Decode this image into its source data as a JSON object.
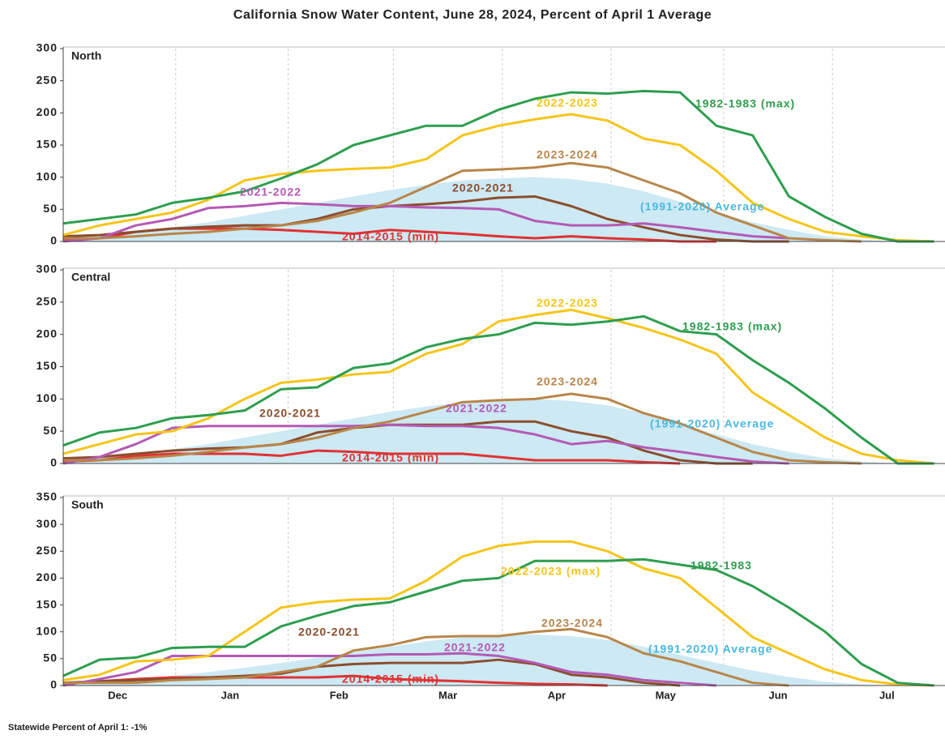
{
  "title": "California Snow Water Content, June 28, 2024, Percent of April 1 Average",
  "footnote": "Statewide Percent of April 1: -1%",
  "chart_data": [
    {
      "type": "line",
      "title": "North",
      "x": [
        0,
        10,
        20,
        30,
        40,
        50,
        60,
        70,
        80,
        90,
        100,
        110,
        120,
        130,
        140,
        150,
        160,
        170,
        180,
        190,
        200,
        210,
        220,
        230,
        240
      ],
      "xlim": [
        0,
        243
      ],
      "xgrid": [
        31,
        62,
        91,
        121,
        151,
        182,
        212
      ],
      "ylim": [
        0,
        300
      ],
      "yticks": [
        0,
        50,
        100,
        150,
        200,
        250,
        300
      ],
      "series": [
        {
          "name": "(1991-2020) Average",
          "type": "area",
          "color": "#cde9f4",
          "label_color": "#4ab8e0",
          "values": [
            5,
            10,
            15,
            22,
            30,
            40,
            50,
            60,
            70,
            80,
            88,
            95,
            98,
            100,
            97,
            90,
            78,
            62,
            45,
            30,
            18,
            8,
            3,
            0,
            0
          ]
        },
        {
          "name": "2014-2015 (min)",
          "color": "#e03232",
          "values": [
            2,
            5,
            15,
            20,
            20,
            20,
            18,
            15,
            12,
            18,
            15,
            12,
            8,
            5,
            8,
            5,
            3,
            0,
            0,
            null,
            null,
            null,
            null,
            null,
            null
          ]
        },
        {
          "name": "2020-2021",
          "color": "#8b4e2e",
          "values": [
            8,
            10,
            15,
            20,
            23,
            25,
            25,
            35,
            50,
            55,
            58,
            62,
            68,
            70,
            55,
            35,
            22,
            10,
            3,
            0,
            0,
            null,
            null,
            null,
            null
          ]
        },
        {
          "name": "2021-2022",
          "color": "#b45ab4",
          "values": [
            0,
            5,
            25,
            35,
            52,
            55,
            60,
            58,
            55,
            55,
            53,
            52,
            50,
            32,
            25,
            25,
            28,
            22,
            15,
            8,
            5,
            null,
            null,
            null,
            null
          ]
        },
        {
          "name": "2023-2024",
          "color": "#b8864a",
          "values": [
            5,
            5,
            8,
            12,
            15,
            20,
            25,
            32,
            45,
            60,
            85,
            110,
            112,
            115,
            122,
            115,
            95,
            75,
            45,
            25,
            5,
            2,
            0,
            null,
            null
          ]
        },
        {
          "name": "2022-2023",
          "color": "#f5c518",
          "values": [
            10,
            25,
            35,
            45,
            65,
            95,
            105,
            110,
            113,
            115,
            128,
            165,
            180,
            190,
            198,
            188,
            160,
            150,
            110,
            60,
            35,
            15,
            8,
            2,
            0
          ]
        },
        {
          "name": "1982-1983 (max)",
          "color": "#2e9e4f",
          "values": [
            28,
            35,
            42,
            60,
            68,
            78,
            98,
            120,
            150,
            165,
            180,
            180,
            205,
            222,
            232,
            230,
            234,
            232,
            180,
            165,
            70,
            38,
            12,
            0,
            0
          ]
        }
      ]
    },
    {
      "type": "line",
      "title": "Central",
      "x": [
        0,
        10,
        20,
        30,
        40,
        50,
        60,
        70,
        80,
        90,
        100,
        110,
        120,
        130,
        140,
        150,
        160,
        170,
        180,
        190,
        200,
        210,
        220,
        230,
        240
      ],
      "xlim": [
        0,
        243
      ],
      "xgrid": [
        31,
        62,
        91,
        121,
        151,
        182,
        212
      ],
      "ylim": [
        0,
        300
      ],
      "yticks": [
        0,
        50,
        100,
        150,
        200,
        250,
        300
      ],
      "series": [
        {
          "name": "(1991-2020) Average",
          "type": "area",
          "color": "#cde9f4",
          "label_color": "#4ab8e0",
          "values": [
            5,
            10,
            15,
            22,
            30,
            40,
            50,
            60,
            70,
            80,
            88,
            95,
            98,
            100,
            97,
            90,
            78,
            62,
            45,
            30,
            18,
            8,
            3,
            0,
            0
          ]
        },
        {
          "name": "2014-2015 (min)",
          "color": "#e03232",
          "values": [
            3,
            5,
            12,
            15,
            15,
            15,
            12,
            20,
            18,
            15,
            15,
            15,
            10,
            5,
            5,
            5,
            2,
            0,
            null,
            null,
            null,
            null,
            null,
            null,
            null
          ]
        },
        {
          "name": "2020-2021",
          "color": "#8b4e2e",
          "values": [
            8,
            10,
            15,
            20,
            23,
            25,
            30,
            48,
            55,
            60,
            60,
            60,
            65,
            65,
            50,
            40,
            20,
            5,
            0,
            0,
            null,
            null,
            null,
            null,
            null
          ]
        },
        {
          "name": "2021-2022",
          "color": "#b45ab4",
          "values": [
            0,
            10,
            30,
            55,
            58,
            58,
            58,
            58,
            58,
            60,
            58,
            58,
            55,
            45,
            30,
            35,
            25,
            18,
            10,
            3,
            0,
            null,
            null,
            null,
            null
          ]
        },
        {
          "name": "2023-2024",
          "color": "#b8864a",
          "values": [
            5,
            5,
            8,
            12,
            18,
            25,
            30,
            40,
            55,
            65,
            80,
            95,
            98,
            100,
            108,
            100,
            78,
            62,
            40,
            18,
            5,
            2,
            0,
            null,
            null
          ]
        },
        {
          "name": "2022-2023",
          "color": "#f5c518",
          "values": [
            15,
            30,
            45,
            50,
            70,
            100,
            125,
            130,
            138,
            142,
            170,
            185,
            220,
            230,
            238,
            225,
            210,
            192,
            170,
            110,
            75,
            40,
            15,
            5,
            0
          ]
        },
        {
          "name": "1982-1983 (max)",
          "color": "#2e9e4f",
          "values": [
            28,
            48,
            55,
            70,
            75,
            82,
            115,
            118,
            148,
            155,
            180,
            193,
            200,
            218,
            215,
            220,
            228,
            205,
            200,
            160,
            125,
            85,
            40,
            0,
            0
          ]
        }
      ]
    },
    {
      "type": "line",
      "title": "South",
      "x": [
        0,
        10,
        20,
        30,
        40,
        50,
        60,
        70,
        80,
        90,
        100,
        110,
        120,
        130,
        140,
        150,
        160,
        170,
        180,
        190,
        200,
        210,
        220,
        230,
        240
      ],
      "xlim": [
        0,
        243
      ],
      "xgrid": [
        31,
        62,
        91,
        121,
        151,
        182,
        212
      ],
      "ylim": [
        0,
        350
      ],
      "yticks": [
        0,
        50,
        100,
        150,
        200,
        250,
        300,
        350
      ],
      "xticks": [
        {
          "value": 15,
          "label": "Dec"
        },
        {
          "value": 46,
          "label": "Jan"
        },
        {
          "value": 76,
          "label": "Feb"
        },
        {
          "value": 106,
          "label": "Mar"
        },
        {
          "value": 136,
          "label": "Apr"
        },
        {
          "value": 166,
          "label": "May"
        },
        {
          "value": 197,
          "label": "Jun"
        },
        {
          "value": 227,
          "label": "Jul"
        }
      ],
      "series": [
        {
          "name": "(1991-2020) Average",
          "type": "area",
          "color": "#cde9f4",
          "label_color": "#4ab8e0",
          "values": [
            5,
            8,
            12,
            18,
            25,
            33,
            42,
            52,
            62,
            72,
            82,
            90,
            94,
            95,
            92,
            85,
            72,
            57,
            42,
            28,
            16,
            7,
            2,
            0,
            0
          ]
        },
        {
          "name": "2014-2015 (min)",
          "color": "#e03232",
          "values": [
            3,
            8,
            12,
            15,
            15,
            15,
            15,
            15,
            18,
            12,
            10,
            8,
            5,
            3,
            2,
            0,
            null,
            null,
            null,
            null,
            null,
            null,
            null,
            null,
            null
          ]
        },
        {
          "name": "2020-2021",
          "color": "#8b4e2e",
          "values": [
            5,
            8,
            10,
            12,
            15,
            18,
            22,
            35,
            40,
            42,
            42,
            42,
            48,
            40,
            20,
            15,
            5,
            0,
            null,
            null,
            null,
            null,
            null,
            null,
            null
          ]
        },
        {
          "name": "2021-2022",
          "color": "#b45ab4",
          "values": [
            0,
            12,
            25,
            55,
            55,
            55,
            55,
            55,
            55,
            58,
            58,
            60,
            55,
            42,
            25,
            20,
            10,
            5,
            0,
            null,
            null,
            null,
            null,
            null,
            null
          ]
        },
        {
          "name": "2023-2024",
          "color": "#b8864a",
          "values": [
            5,
            5,
            5,
            10,
            12,
            15,
            25,
            35,
            65,
            75,
            90,
            92,
            92,
            100,
            105,
            90,
            60,
            45,
            25,
            5,
            0,
            null,
            null,
            null,
            null
          ]
        },
        {
          "name": "2022-2023 (max)",
          "color": "#f5c518",
          "values": [
            10,
            20,
            45,
            48,
            55,
            100,
            145,
            155,
            160,
            162,
            195,
            240,
            260,
            268,
            268,
            250,
            218,
            200,
            145,
            90,
            60,
            30,
            10,
            2,
            0
          ]
        },
        {
          "name": "1982-1983",
          "color": "#2e9e4f",
          "values": [
            18,
            48,
            52,
            70,
            72,
            72,
            110,
            130,
            148,
            155,
            175,
            195,
            200,
            232,
            232,
            232,
            235,
            225,
            215,
            185,
            145,
            100,
            40,
            5,
            0
          ]
        }
      ]
    }
  ]
}
